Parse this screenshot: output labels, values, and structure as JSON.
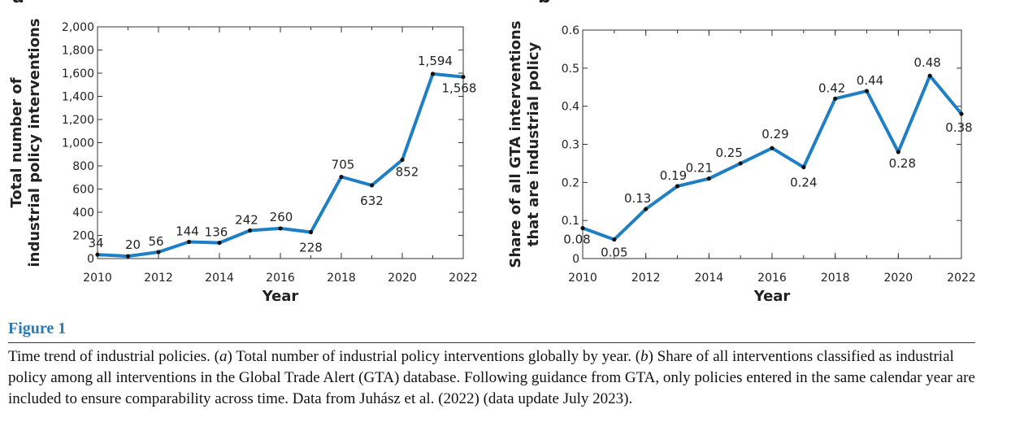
{
  "figure": {
    "title": "Figure 1",
    "caption_parts": [
      "Time trend of industrial policies. (",
      "a",
      ") Total number of industrial policy interventions globally by year. (",
      "b",
      ") Share of all interventions classified as industrial policy among all interventions in the Global Trade Alert (GTA) database. Following guidance from GTA, only policies entered in the same calendar year are included to ensure comparability across time. Data from Juhász et al. (2022) (data update July 2023)."
    ]
  },
  "chart_data": [
    {
      "panel": "a",
      "type": "line",
      "xlabel": "Year",
      "ylabel": [
        "Total number of",
        "industrial policy interventions"
      ],
      "xlim": [
        2010,
        2022
      ],
      "ylim": [
        0,
        2000
      ],
      "xticks": [
        2010,
        2012,
        2014,
        2016,
        2018,
        2020,
        2022
      ],
      "yticks": [
        0,
        200,
        400,
        600,
        800,
        1000,
        1200,
        1400,
        1600,
        1800,
        2000
      ],
      "ytick_labels": [
        "0",
        "200",
        "400",
        "600",
        "800",
        "1,000",
        "1,200",
        "1,400",
        "1,600",
        "1,800",
        "2,000"
      ],
      "x": [
        2010,
        2011,
        2012,
        2013,
        2014,
        2015,
        2016,
        2017,
        2018,
        2019,
        2020,
        2021,
        2022
      ],
      "values": [
        34,
        20,
        56,
        144,
        136,
        242,
        260,
        228,
        705,
        632,
        852,
        1594,
        1568
      ],
      "data_labels": [
        "34",
        "20",
        "56",
        "144",
        "136",
        "242",
        "260",
        "228",
        "705",
        "632",
        "852",
        "1,594",
        "1,568"
      ],
      "color": "#1f7fc4",
      "grid": false
    },
    {
      "panel": "b",
      "type": "line",
      "xlabel": "Year",
      "ylabel": [
        "Share of all GTA interventions",
        "that are industrial policy"
      ],
      "xlim": [
        2010,
        2022
      ],
      "ylim": [
        0,
        0.6
      ],
      "xticks": [
        2010,
        2012,
        2014,
        2016,
        2018,
        2020,
        2022
      ],
      "yticks": [
        0,
        0.1,
        0.2,
        0.3,
        0.4,
        0.5,
        0.6
      ],
      "ytick_labels": [
        "0",
        "0.1",
        "0.2",
        "0.3",
        "0.4",
        "0.5",
        "0.6"
      ],
      "x": [
        2010,
        2011,
        2012,
        2013,
        2014,
        2015,
        2016,
        2017,
        2018,
        2019,
        2020,
        2021,
        2022
      ],
      "values": [
        0.08,
        0.05,
        0.13,
        0.19,
        0.21,
        0.25,
        0.29,
        0.24,
        0.42,
        0.44,
        0.28,
        0.48,
        0.38
      ],
      "data_labels": [
        "0.08",
        "0.05",
        "0.13",
        "0.19",
        "0.21",
        "0.25",
        "0.29",
        "0.24",
        "0.42",
        "0.44",
        "0.28",
        "0.48",
        "0.38"
      ],
      "color": "#1f7fc4",
      "grid": false
    }
  ]
}
